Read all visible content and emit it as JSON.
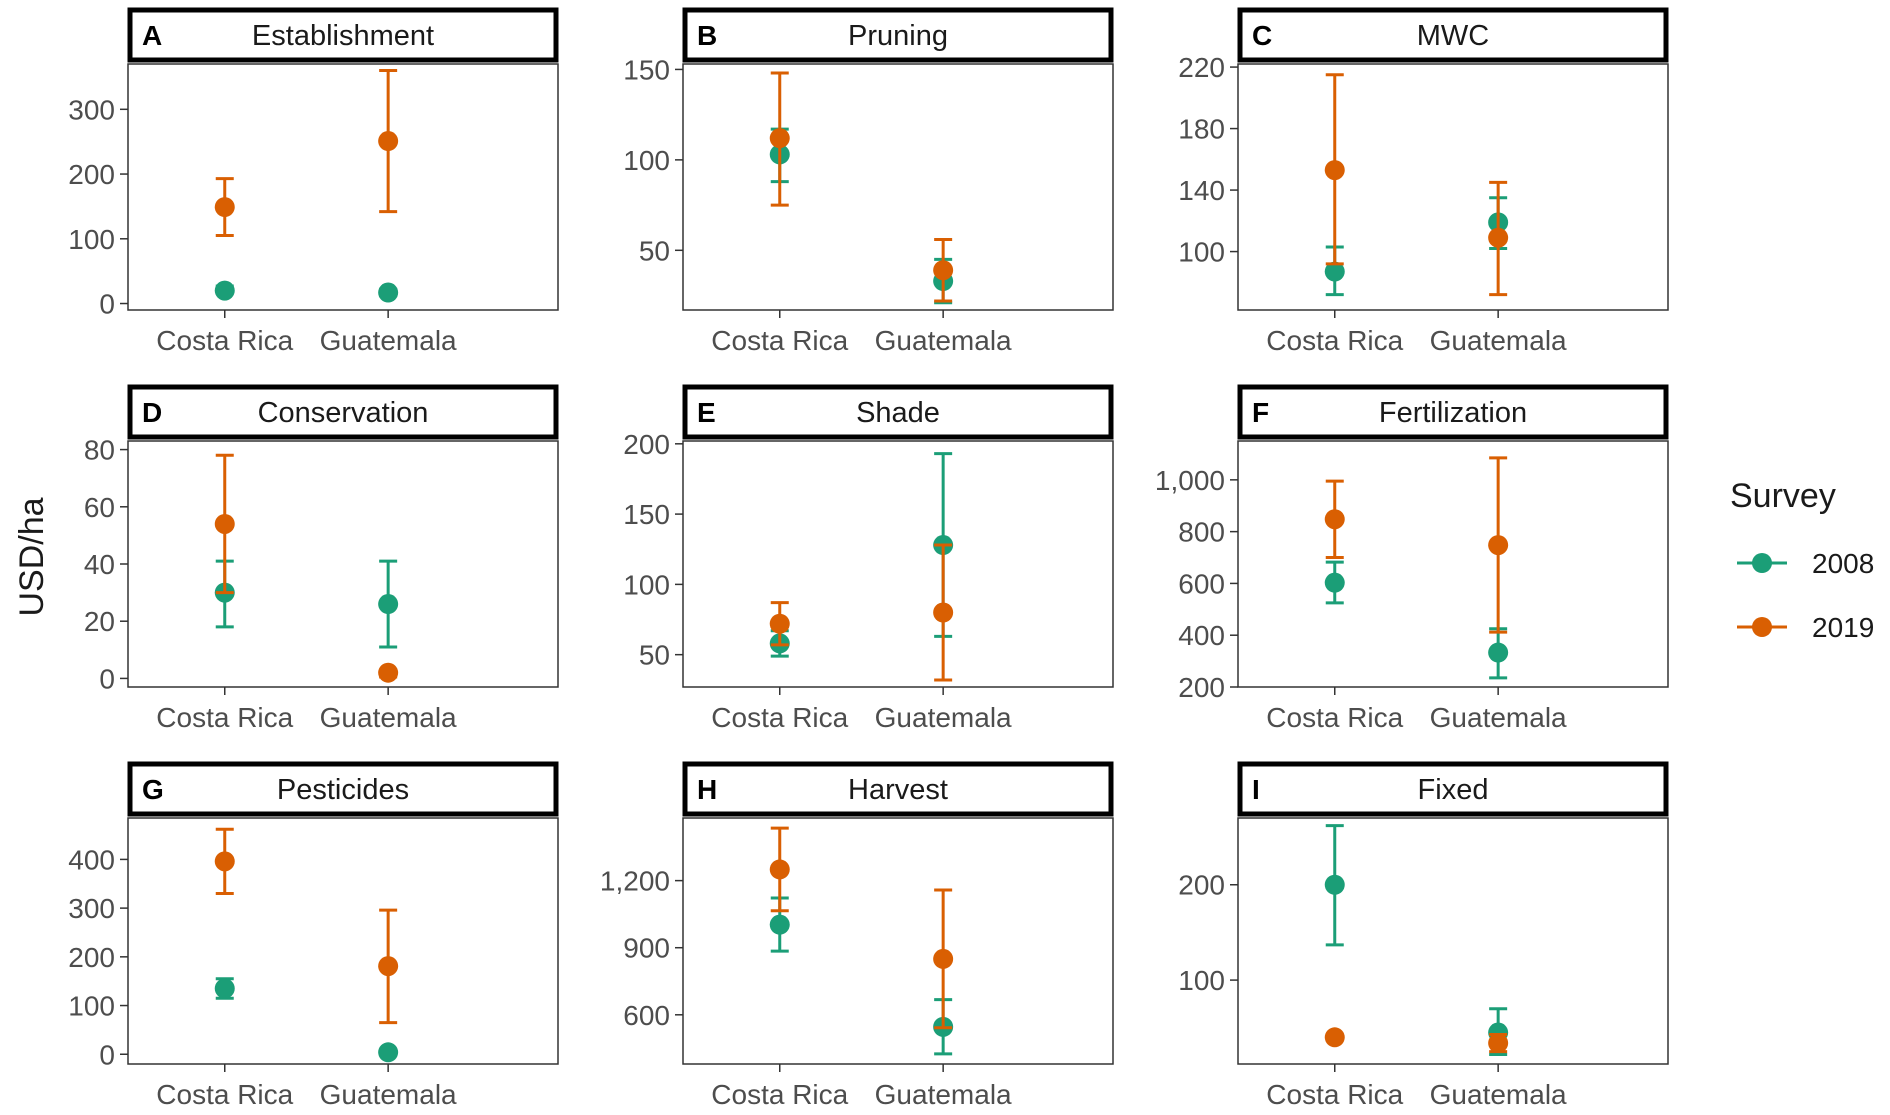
{
  "y_axis_title": "USD/ha",
  "legend": {
    "title": "Survey",
    "items": [
      {
        "label": "2008",
        "color": "#1b9e77"
      },
      {
        "label": "2019",
        "color": "#d95f02"
      }
    ]
  },
  "chart_data": [
    {
      "type": "scatter",
      "letter": "A",
      "title": "Establishment",
      "categories": [
        "Costa Rica",
        "Guatemala"
      ],
      "ylim": [
        -10,
        370
      ],
      "yticks": [
        0,
        100,
        200,
        300
      ],
      "ytick_labels": [
        "0",
        "100",
        "200",
        "300"
      ],
      "series": [
        {
          "name": "2008",
          "color": "#1b9e77",
          "values": [
            20,
            17
          ],
          "lower": [
            17,
            12
          ],
          "upper": [
            27,
            22
          ]
        },
        {
          "name": "2019",
          "color": "#d95f02",
          "values": [
            149,
            251
          ],
          "lower": [
            105,
            142
          ],
          "upper": [
            193,
            360
          ]
        }
      ]
    },
    {
      "type": "scatter",
      "letter": "B",
      "title": "Pruning",
      "categories": [
        "Costa Rica",
        "Guatemala"
      ],
      "ylim": [
        17,
        153
      ],
      "yticks": [
        50,
        100,
        150
      ],
      "ytick_labels": [
        "50",
        "100",
        "150"
      ],
      "series": [
        {
          "name": "2008",
          "color": "#1b9e77",
          "values": [
            103,
            33
          ],
          "lower": [
            88,
            21
          ],
          "upper": [
            117,
            45
          ]
        },
        {
          "name": "2019",
          "color": "#d95f02",
          "values": [
            112,
            39
          ],
          "lower": [
            75,
            22
          ],
          "upper": [
            148,
            56
          ]
        }
      ]
    },
    {
      "type": "scatter",
      "letter": "C",
      "title": "MWC",
      "categories": [
        "Costa Rica",
        "Guatemala"
      ],
      "ylim": [
        62,
        222
      ],
      "yticks": [
        100,
        140,
        180,
        220
      ],
      "ytick_labels": [
        "100",
        "140",
        "180",
        "220"
      ],
      "series": [
        {
          "name": "2008",
          "color": "#1b9e77",
          "values": [
            87,
            119
          ],
          "lower": [
            72,
            102
          ],
          "upper": [
            103,
            135
          ]
        },
        {
          "name": "2019",
          "color": "#d95f02",
          "values": [
            153,
            109
          ],
          "lower": [
            92,
            72
          ],
          "upper": [
            215,
            145
          ]
        }
      ]
    },
    {
      "type": "scatter",
      "letter": "D",
      "title": "Conservation",
      "categories": [
        "Costa Rica",
        "Guatemala"
      ],
      "ylim": [
        -3,
        83
      ],
      "yticks": [
        0,
        20,
        40,
        60,
        80
      ],
      "ytick_labels": [
        "0",
        "20",
        "40",
        "60",
        "80"
      ],
      "series": [
        {
          "name": "2008",
          "color": "#1b9e77",
          "values": [
            30,
            26
          ],
          "lower": [
            18,
            11
          ],
          "upper": [
            41,
            41
          ]
        },
        {
          "name": "2019",
          "color": "#d95f02",
          "values": [
            54,
            2
          ],
          "lower": [
            30,
            0.5
          ],
          "upper": [
            78,
            3
          ]
        }
      ]
    },
    {
      "type": "scatter",
      "letter": "E",
      "title": "Shade",
      "categories": [
        "Costa Rica",
        "Guatemala"
      ],
      "ylim": [
        27,
        202
      ],
      "yticks": [
        50,
        100,
        150,
        200
      ],
      "ytick_labels": [
        "50",
        "100",
        "150",
        "200"
      ],
      "series": [
        {
          "name": "2008",
          "color": "#1b9e77",
          "values": [
            58,
            128
          ],
          "lower": [
            49,
            63
          ],
          "upper": [
            67,
            193
          ]
        },
        {
          "name": "2019",
          "color": "#d95f02",
          "values": [
            72,
            80
          ],
          "lower": [
            57,
            32
          ],
          "upper": [
            87,
            128
          ]
        }
      ]
    },
    {
      "type": "scatter",
      "letter": "F",
      "title": "Fertilization",
      "categories": [
        "Costa Rica",
        "Guatemala"
      ],
      "ylim": [
        200,
        1150
      ],
      "yticks": [
        200,
        400,
        600,
        800,
        1000
      ],
      "ytick_labels": [
        "200",
        "400",
        "600",
        "800",
        "1,000"
      ],
      "series": [
        {
          "name": "2008",
          "color": "#1b9e77",
          "values": [
            603,
            333
          ],
          "lower": [
            525,
            235
          ],
          "upper": [
            682,
            425
          ]
        },
        {
          "name": "2019",
          "color": "#d95f02",
          "values": [
            848,
            748
          ],
          "lower": [
            700,
            412
          ],
          "upper": [
            995,
            1085
          ]
        }
      ]
    },
    {
      "type": "scatter",
      "letter": "G",
      "title": "Pesticides",
      "categories": [
        "Costa Rica",
        "Guatemala"
      ],
      "ylim": [
        -20,
        485
      ],
      "yticks": [
        0,
        100,
        200,
        300,
        400
      ],
      "ytick_labels": [
        "0",
        "100",
        "200",
        "300",
        "400"
      ],
      "series": [
        {
          "name": "2008",
          "color": "#1b9e77",
          "values": [
            135,
            4
          ],
          "lower": [
            115,
            2
          ],
          "upper": [
            155,
            6
          ]
        },
        {
          "name": "2019",
          "color": "#d95f02",
          "values": [
            396,
            181
          ],
          "lower": [
            330,
            65
          ],
          "upper": [
            462,
            296
          ]
        }
      ]
    },
    {
      "type": "scatter",
      "letter": "H",
      "title": "Harvest",
      "categories": [
        "Costa Rica",
        "Guatemala"
      ],
      "ylim": [
        380,
        1480
      ],
      "yticks": [
        600,
        900,
        1200
      ],
      "ytick_labels": [
        "600",
        "900",
        "1,200"
      ],
      "series": [
        {
          "name": "2008",
          "color": "#1b9e77",
          "values": [
            1003,
            546
          ],
          "lower": [
            885,
            425
          ],
          "upper": [
            1122,
            668
          ]
        },
        {
          "name": "2019",
          "color": "#d95f02",
          "values": [
            1250,
            850
          ],
          "lower": [
            1065,
            542
          ],
          "upper": [
            1435,
            1158
          ]
        }
      ]
    },
    {
      "type": "scatter",
      "letter": "I",
      "title": "Fixed",
      "categories": [
        "Costa Rica",
        "Guatemala"
      ],
      "ylim": [
        12,
        270
      ],
      "yticks": [
        100,
        200
      ],
      "ytick_labels": [
        "100",
        "200"
      ],
      "series": [
        {
          "name": "2008",
          "color": "#1b9e77",
          "values": [
            200,
            45
          ],
          "lower": [
            137,
            22
          ],
          "upper": [
            262,
            70
          ]
        },
        {
          "name": "2019",
          "color": "#d95f02",
          "values": [
            40,
            34
          ],
          "lower": [
            38,
            25
          ],
          "upper": [
            42,
            43
          ]
        }
      ]
    }
  ]
}
